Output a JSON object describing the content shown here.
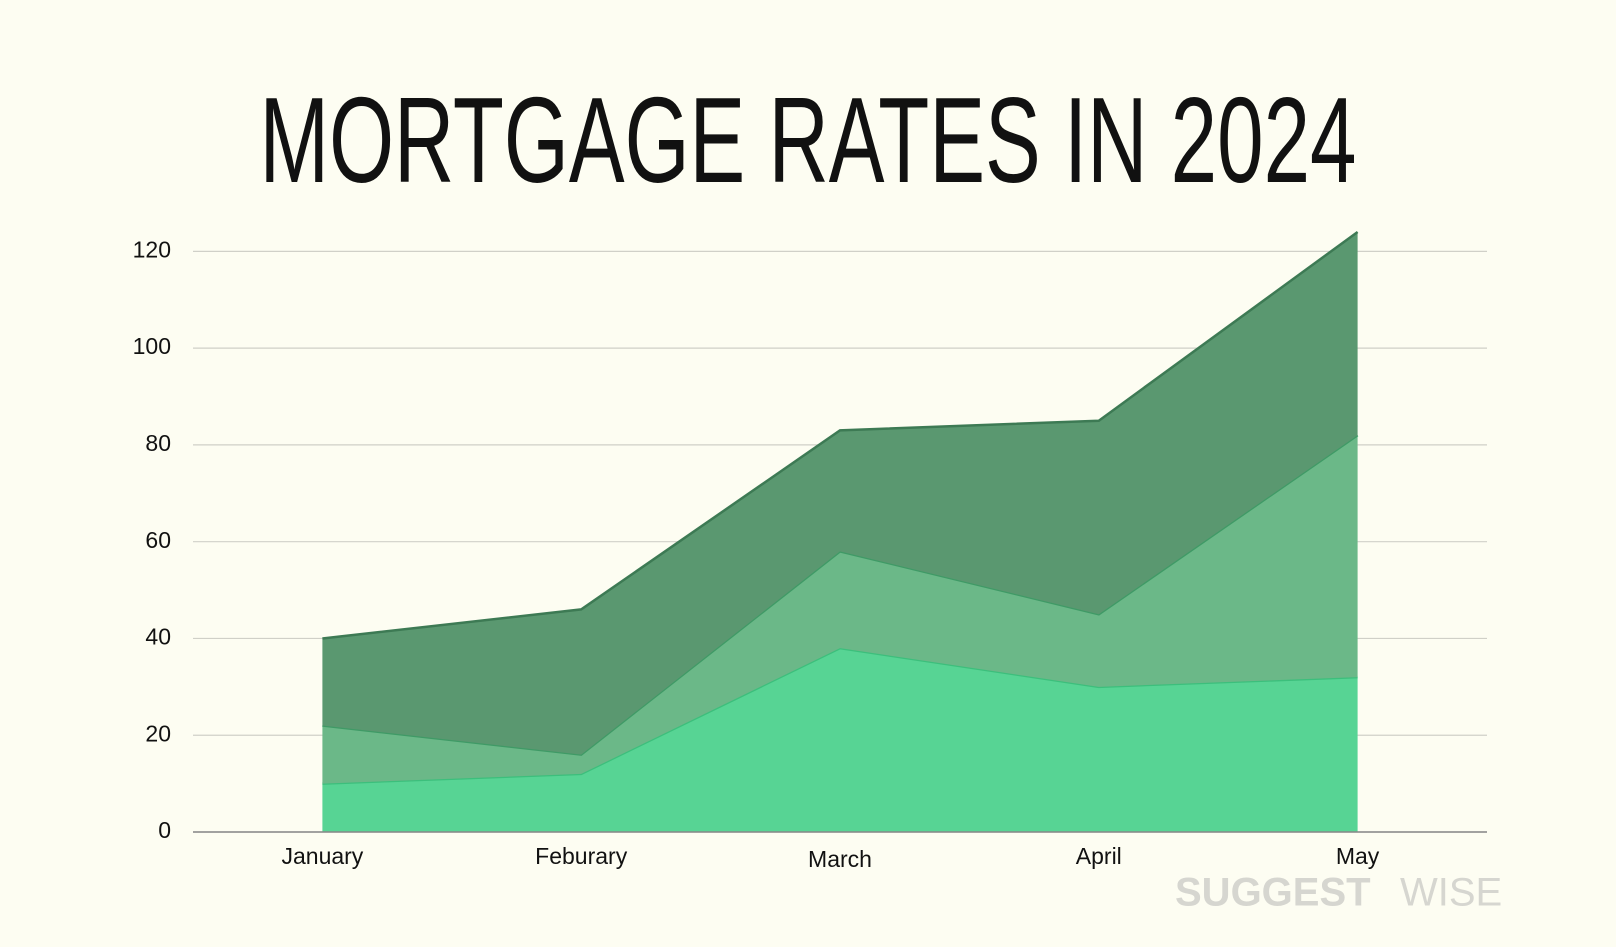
{
  "chart_data": {
    "type": "stacked_area",
    "title": "MORTGAGE RATES IN 2024",
    "categories": [
      "January",
      "Feburary",
      "March",
      "April",
      "May"
    ],
    "series": [
      {
        "color": "#57d494",
        "line": "#3cbf7c",
        "values": [
          10,
          12,
          38,
          30,
          32
        ]
      },
      {
        "color": "#6bb888",
        "line": "#3f9a66",
        "values": [
          12,
          4,
          20,
          15,
          50
        ]
      },
      {
        "color": "#5a9870",
        "line": "#3d7a54",
        "values": [
          18,
          30,
          25,
          40,
          42
        ]
      }
    ],
    "ylim": [
      0,
      124
    ],
    "yticks": [
      0,
      20,
      40,
      60,
      80,
      100,
      120
    ],
    "grid": true,
    "watermark": {
      "bold": "SUGGEST",
      "light": "WISE"
    }
  }
}
